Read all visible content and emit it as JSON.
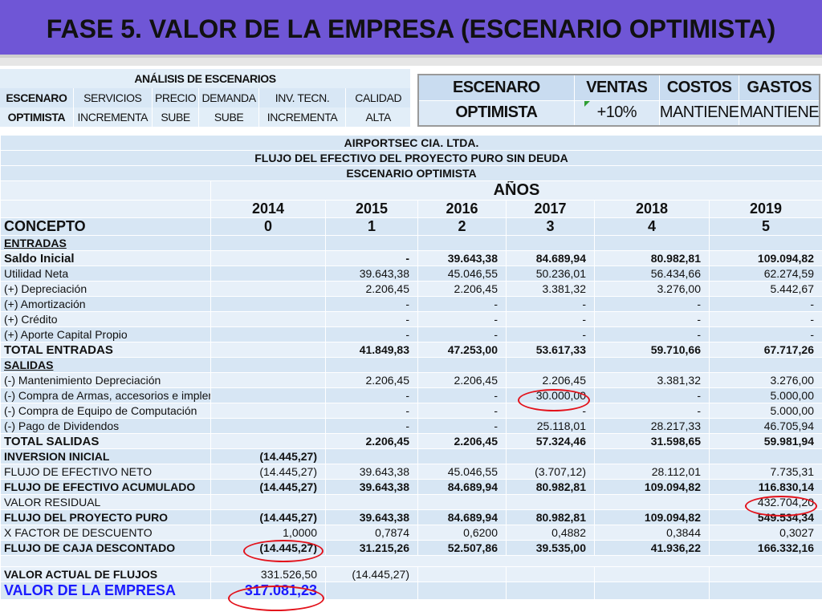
{
  "title": "FASE 5. VALOR DE LA EMPRESA (ESCENARIO OPTIMISTA)",
  "scenario_analysis": {
    "header": "ANÁLISIS DE ESCENARIOS",
    "columns": [
      "ESCENARO",
      "SERVICIOS",
      "PRECIO",
      "DEMANDA",
      "INV. TECN.",
      "CALIDAD"
    ],
    "row": [
      "OPTIMISTA",
      "INCREMENTA",
      "SUBE",
      "SUBE",
      "INCREMENTA",
      "ALTA"
    ]
  },
  "summary": {
    "columns": [
      "ESCENARO",
      "VENTAS",
      "COSTOS",
      "GASTOS"
    ],
    "row": [
      "OPTIMISTA",
      "+10%",
      "MANTIENE",
      "MANTIENE"
    ]
  },
  "cashflow": {
    "company": "AIRPORTSEC CIA. LTDA.",
    "subtitle": "FLUJO DEL EFECTIVO DEL PROYECTO PURO SIN DEUDA",
    "scenario": "ESCENARIO OPTIMISTA",
    "years_label": "AÑOS",
    "years": [
      "2014",
      "2015",
      "2016",
      "2017",
      "2018",
      "2019"
    ],
    "concept_label": "CONCEPTO",
    "periods": [
      "0",
      "1",
      "2",
      "3",
      "4",
      "5"
    ],
    "rows": [
      {
        "label": "ENTRADAS",
        "values": [
          "",
          "",
          "",
          "",
          "",
          ""
        ]
      },
      {
        "label": "Saldo Inicial",
        "values": [
          "",
          "-",
          "39.643,38",
          "84.689,94",
          "80.982,81",
          "109.094,82"
        ]
      },
      {
        "label": "Utilidad Neta",
        "values": [
          "",
          "39.643,38",
          "45.046,55",
          "50.236,01",
          "56.434,66",
          "62.274,59"
        ]
      },
      {
        "label": "(+) Depreciación",
        "values": [
          "",
          "2.206,45",
          "2.206,45",
          "3.381,32",
          "3.276,00",
          "5.442,67"
        ]
      },
      {
        "label": "(+) Amortización",
        "values": [
          "",
          "-",
          "-",
          "-",
          "-",
          "-"
        ]
      },
      {
        "label": "(+) Crédito",
        "values": [
          "",
          "-",
          "-",
          "-",
          "-",
          "-"
        ]
      },
      {
        "label": "(+) Aporte Capital Propio",
        "values": [
          "",
          "-",
          "-",
          "-",
          "-",
          "-"
        ]
      },
      {
        "label": "TOTAL ENTRADAS",
        "values": [
          "",
          "41.849,83",
          "47.253,00",
          "53.617,33",
          "59.710,66",
          "67.717,26"
        ]
      },
      {
        "label": "SALIDAS",
        "values": [
          "",
          "",
          "",
          "",
          "",
          ""
        ]
      },
      {
        "label": "(-) Mantenimiento Depreciación",
        "values": [
          "",
          "2.206,45",
          "2.206,45",
          "2.206,45",
          "3.381,32",
          "3.276,00"
        ]
      },
      {
        "label": "(-) Compra  de Armas, accesorios e implementos de seguri",
        "values": [
          "",
          "-",
          "-",
          "30.000,00",
          "-",
          "5.000,00"
        ]
      },
      {
        "label": "(-) Compra de Equipo de Computación",
        "values": [
          "",
          "-",
          "-",
          "-",
          "-",
          "5.000,00"
        ]
      },
      {
        "label": "(-) Pago de Dividendos",
        "values": [
          "",
          "-",
          "-",
          "25.118,01",
          "28.217,33",
          "46.705,94"
        ]
      },
      {
        "label": "TOTAL SALIDAS",
        "values": [
          "",
          "2.206,45",
          "2.206,45",
          "57.324,46",
          "31.598,65",
          "59.981,94"
        ]
      },
      {
        "label": "INVERSION INICIAL",
        "values": [
          "(14.445,27)",
          "",
          "",
          "",
          "",
          ""
        ]
      },
      {
        "label": "FLUJO DE EFECTIVO NETO",
        "values": [
          "(14.445,27)",
          "39.643,38",
          "45.046,55",
          "(3.707,12)",
          "28.112,01",
          "7.735,31"
        ]
      },
      {
        "label": "FLUJO DE EFECTIVO ACUMULADO",
        "values": [
          "(14.445,27)",
          "39.643,38",
          "84.689,94",
          "80.982,81",
          "109.094,82",
          "116.830,14"
        ]
      },
      {
        "label": "VALOR RESIDUAL",
        "values": [
          "",
          "",
          "",
          "",
          "",
          "432.704,20"
        ]
      },
      {
        "label": "FLUJO DEL PROYECTO PURO",
        "values": [
          "(14.445,27)",
          "39.643,38",
          "84.689,94",
          "80.982,81",
          "109.094,82",
          "549.534,34"
        ]
      },
      {
        "label": "X FACTOR DE DESCUENTO",
        "values": [
          "1,0000",
          "0,7874",
          "0,6200",
          "0,4882",
          "0,3844",
          "0,3027"
        ]
      },
      {
        "label": "FLUJO DE CAJA DESCONTADO",
        "values": [
          "(14.445,27)",
          "31.215,26",
          "52.507,86",
          "39.535,00",
          "41.936,22",
          "166.332,16"
        ]
      }
    ],
    "valor_actual": {
      "label": "VALOR ACTUAL DE FLUJOS",
      "value": "331.526,50",
      "value2": "(14.445,27)"
    },
    "valor_empresa": {
      "label": "VALOR DE LA EMPRESA",
      "value": "317.081,23"
    }
  },
  "colors": {
    "title_bg": "#6f56d6",
    "table_bg": "#d7e6f4",
    "highlight_circle": "#e3121b",
    "total_blue": "#1a1aff"
  }
}
